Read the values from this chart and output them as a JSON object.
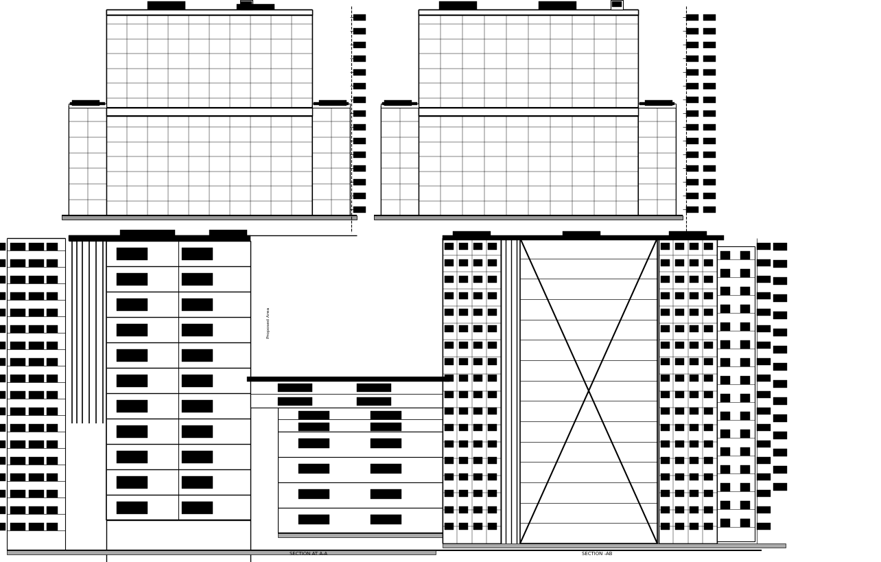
{
  "bg_color": "#ffffff",
  "line_color": "#000000",
  "subtitle1": "SECTION AT A-A",
  "subtitle2": "SECTION -AB",
  "fig_width": 12.84,
  "fig_height": 8.2,
  "dpi": 100
}
